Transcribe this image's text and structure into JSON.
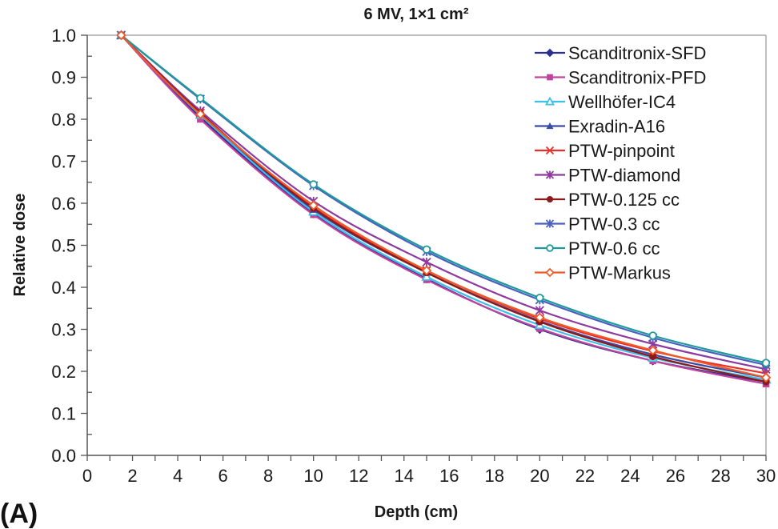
{
  "panel_label": "(A)",
  "chart_data": {
    "type": "line",
    "title": "6 MV, 1×1 cm²",
    "xlabel": "Depth (cm)",
    "ylabel": "Relative dose",
    "xlim": [
      0,
      30
    ],
    "ylim": [
      0,
      1.0
    ],
    "xticks": [
      0,
      2,
      4,
      6,
      8,
      10,
      12,
      14,
      16,
      18,
      20,
      22,
      24,
      26,
      28,
      30
    ],
    "xtick_labels": [
      "0",
      "2",
      "4",
      "6",
      "8",
      "10",
      "12",
      "14",
      "16",
      "18",
      "20",
      "22",
      "24",
      "26",
      "28",
      "30"
    ],
    "yticks": [
      0.0,
      0.1,
      0.2,
      0.3,
      0.4,
      0.5,
      0.6,
      0.7,
      0.8,
      0.9,
      1.0
    ],
    "ytick_labels": [
      "0.0",
      "0.1",
      "0.2",
      "0.3",
      "0.4",
      "0.5",
      "0.6",
      "0.7",
      "0.8",
      "0.9",
      "1.0"
    ],
    "grid": false,
    "legend_position": "top-right",
    "x": [
      1.5,
      5,
      10,
      15,
      20,
      25,
      30
    ],
    "series": [
      {
        "name": "Scanditronix-SFD",
        "color": "#2b2f8f",
        "marker": "diamond-filled",
        "values": [
          1.0,
          0.805,
          0.575,
          0.42,
          0.3,
          0.225,
          0.175
        ]
      },
      {
        "name": "Scanditronix-PFD",
        "color": "#c0449e",
        "marker": "square-filled",
        "values": [
          1.0,
          0.8,
          0.573,
          0.418,
          0.302,
          0.225,
          0.17
        ]
      },
      {
        "name": "Wellhöfer-IC4",
        "color": "#3fbfe8",
        "marker": "triangle-open",
        "values": [
          1.0,
          0.81,
          0.58,
          0.425,
          0.31,
          0.232,
          0.18
        ]
      },
      {
        "name": "Exradin-A16",
        "color": "#3a4aa8",
        "marker": "triangle-filled",
        "values": [
          1.0,
          0.815,
          0.585,
          0.435,
          0.32,
          0.24,
          0.185
        ]
      },
      {
        "name": "PTW-pinpoint",
        "color": "#e8302c",
        "marker": "x",
        "values": [
          1.0,
          0.815,
          0.59,
          0.44,
          0.325,
          0.248,
          0.195
        ]
      },
      {
        "name": "PTW-diamond",
        "color": "#8e3a9e",
        "marker": "star",
        "values": [
          1.0,
          0.82,
          0.605,
          0.46,
          0.345,
          0.265,
          0.205
        ]
      },
      {
        "name": "PTW-0.125 cc",
        "color": "#8b1a1a",
        "marker": "circle-filled",
        "values": [
          1.0,
          0.815,
          0.588,
          0.435,
          0.318,
          0.235,
          0.175
        ]
      },
      {
        "name": "PTW-0.3 cc",
        "color": "#4a5fc0",
        "marker": "star",
        "values": [
          1.0,
          0.848,
          0.642,
          0.485,
          0.37,
          0.28,
          0.215
        ]
      },
      {
        "name": "PTW-0.6 cc",
        "color": "#1f9a9a",
        "marker": "circle-open",
        "values": [
          1.0,
          0.85,
          0.645,
          0.49,
          0.375,
          0.285,
          0.22
        ]
      },
      {
        "name": "PTW-Markus",
        "color": "#f05a28",
        "marker": "diamond-open",
        "values": [
          1.0,
          0.812,
          0.595,
          0.44,
          0.328,
          0.25,
          0.185
        ]
      }
    ]
  }
}
